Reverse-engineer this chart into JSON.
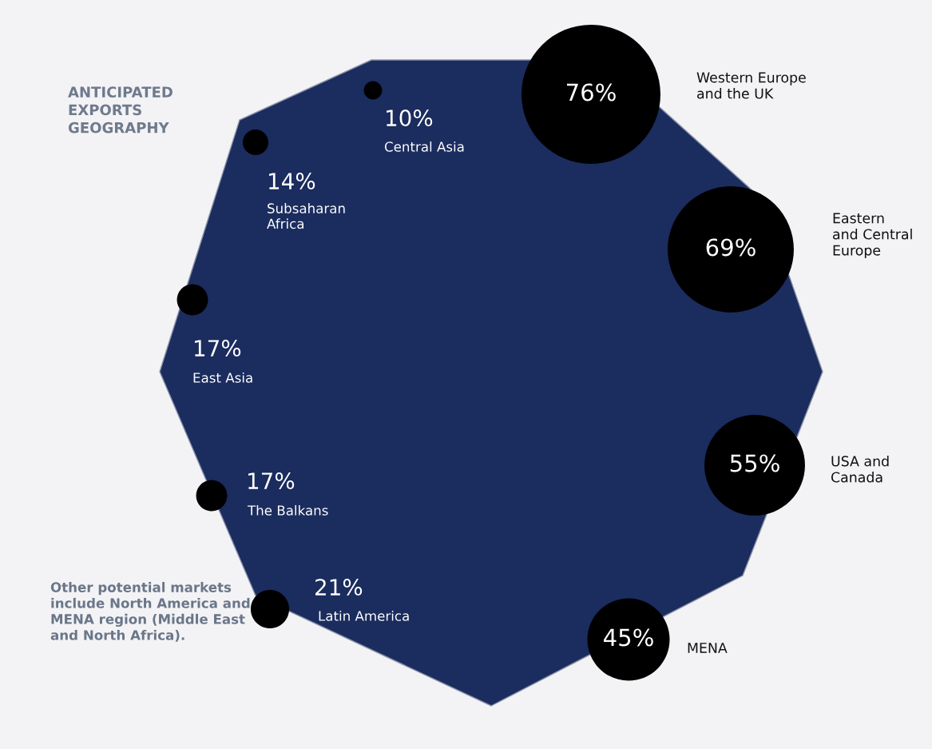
{
  "chart_data": {
    "type": "other",
    "title": "ANTICIPATED EXPORTS GEOGRAPHY",
    "categories": [
      "Western Europe\nand the UK",
      "Eastern\nand Central\nEurope",
      "USA and\nCanada",
      "MENA",
      "Latin America",
      "The Balkans",
      "East Asia",
      "Subsaharan\nAfrica",
      "Central Asia"
    ],
    "values": [
      76,
      69,
      55,
      45,
      21,
      17,
      17,
      14,
      10
    ],
    "value_labels": [
      "76%",
      "69%",
      "55%",
      "45%",
      "21%",
      "17%",
      "17%",
      "14%",
      "10%"
    ],
    "color": "#000000",
    "annotations": [
      "Other potential markets include North America and MENA region (Middle East and North Africa)."
    ]
  }
}
